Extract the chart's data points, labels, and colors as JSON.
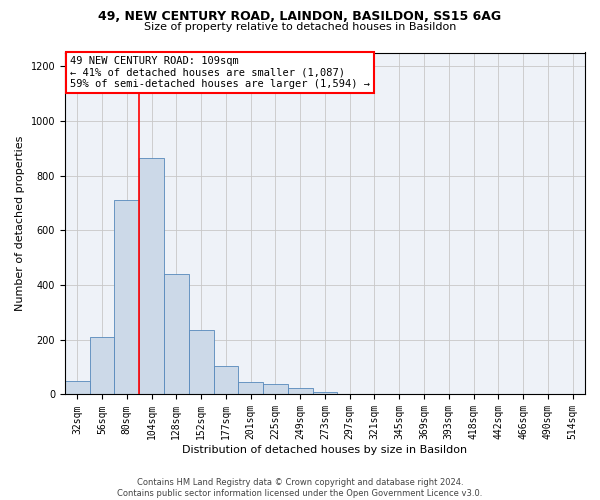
{
  "title_line1": "49, NEW CENTURY ROAD, LAINDON, BASILDON, SS15 6AG",
  "title_line2": "Size of property relative to detached houses in Basildon",
  "xlabel": "Distribution of detached houses by size in Basildon",
  "ylabel": "Number of detached properties",
  "footnote": "Contains HM Land Registry data © Crown copyright and database right 2024.\nContains public sector information licensed under the Open Government Licence v3.0.",
  "bar_labels": [
    "32sqm",
    "56sqm",
    "80sqm",
    "104sqm",
    "128sqm",
    "152sqm",
    "177sqm",
    "201sqm",
    "225sqm",
    "249sqm",
    "273sqm",
    "297sqm",
    "321sqm",
    "345sqm",
    "369sqm",
    "393sqm",
    "418sqm",
    "442sqm",
    "466sqm",
    "490sqm",
    "514sqm"
  ],
  "bar_values": [
    48,
    210,
    710,
    865,
    440,
    235,
    105,
    47,
    37,
    25,
    10,
    0,
    0,
    0,
    0,
    0,
    0,
    0,
    0,
    0,
    0
  ],
  "bar_color": "#ccd9e8",
  "bar_edge_color": "#5588bb",
  "vline_color": "red",
  "vline_index": 3,
  "ylim": [
    0,
    1250
  ],
  "yticks": [
    0,
    200,
    400,
    600,
    800,
    1000,
    1200
  ],
  "annotation_line1": "49 NEW CENTURY ROAD: 109sqm",
  "annotation_line2": "← 41% of detached houses are smaller (1,087)",
  "annotation_line3": "59% of semi-detached houses are larger (1,594) →",
  "annotation_box_color": "white",
  "annotation_box_edge": "red",
  "background_color": "#eef2f8",
  "grid_color": "#c8c8c8",
  "title1_fontsize": 9,
  "title2_fontsize": 8,
  "ylabel_fontsize": 8,
  "xlabel_fontsize": 8,
  "tick_fontsize": 7,
  "annot_fontsize": 7.5,
  "footnote_fontsize": 6
}
